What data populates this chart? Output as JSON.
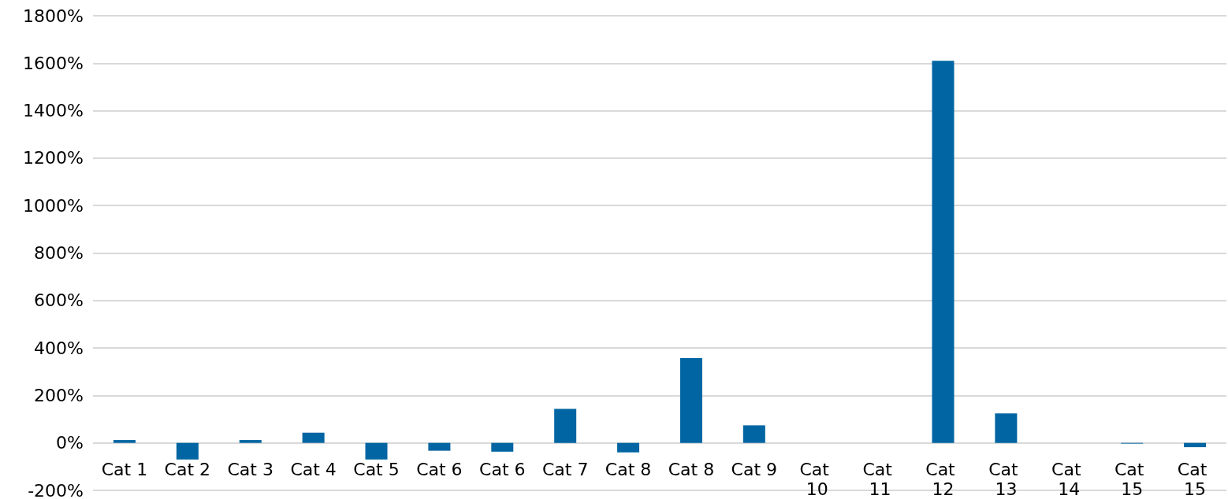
{
  "chart_data": {
    "type": "bar",
    "categories": [
      "Cat 1",
      "Cat 2",
      "Cat 3",
      "Cat 4",
      "Cat 5",
      "Cat 6",
      "Cat 6",
      "Cat 7",
      "Cat 8",
      "Cat 8",
      "Cat 9",
      "Cat 10",
      "Cat 11",
      "Cat 12",
      "Cat 13",
      "Cat 14",
      "Cat 15",
      "Cat 15"
    ],
    "values": [
      12,
      -70,
      12,
      43,
      -70,
      -33,
      -37,
      143,
      -40,
      357,
      74,
      0,
      0,
      1610,
      124,
      0,
      -3,
      -18
    ],
    "color": "#0065a2",
    "ylim": [
      -200,
      1800
    ],
    "yticks": [
      {
        "value": -200,
        "label": "-200%"
      },
      {
        "value": 0,
        "label": "0%"
      },
      {
        "value": 200,
        "label": "200%"
      },
      {
        "value": 400,
        "label": "400%"
      },
      {
        "value": 600,
        "label": "600%"
      },
      {
        "value": 800,
        "label": "800%"
      },
      {
        "value": 1000,
        "label": "1000%"
      },
      {
        "value": 1200,
        "label": "1200%"
      },
      {
        "value": 1400,
        "label": "1400%"
      },
      {
        "value": 1600,
        "label": "1600%"
      },
      {
        "value": 1800,
        "label": "1800%"
      }
    ],
    "grid": true
  }
}
